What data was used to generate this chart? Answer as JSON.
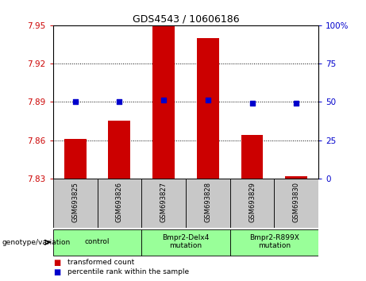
{
  "title": "GDS4543 / 10606186",
  "categories": [
    "GSM693825",
    "GSM693826",
    "GSM693827",
    "GSM693828",
    "GSM693829",
    "GSM693830"
  ],
  "bar_values": [
    7.861,
    7.875,
    7.949,
    7.94,
    7.864,
    7.832
  ],
  "percentile_values": [
    50,
    50,
    51,
    51,
    49,
    49
  ],
  "ylim_left": [
    7.83,
    7.95
  ],
  "ylim_right": [
    0,
    100
  ],
  "yticks_left": [
    7.83,
    7.86,
    7.89,
    7.92,
    7.95
  ],
  "ytick_labels_left": [
    "7.83",
    "7.86",
    "7.89",
    "7.92",
    "7.95"
  ],
  "yticks_right": [
    0,
    25,
    50,
    75,
    100
  ],
  "ytick_labels_right": [
    "0",
    "25",
    "50",
    "75",
    "100%"
  ],
  "bar_color": "#cc0000",
  "dot_color": "#0000cc",
  "bar_width": 0.5,
  "grid_color": "#000000",
  "left_tick_color": "#cc0000",
  "right_tick_color": "#0000cc",
  "groups": [
    {
      "label": "control",
      "start": 0,
      "end": 1,
      "color": "#99ff99"
    },
    {
      "label": "Bmpr2-Delx4\nmutation",
      "start": 2,
      "end": 3,
      "color": "#99ff99"
    },
    {
      "label": "Bmpr2-R899X\nmutation",
      "start": 4,
      "end": 5,
      "color": "#99ff99"
    }
  ],
  "genotype_label": "genotype/variation",
  "legend_items": [
    {
      "color": "#cc0000",
      "label": "transformed count"
    },
    {
      "color": "#0000cc",
      "label": "percentile rank within the sample"
    }
  ],
  "background_color": "#ffffff",
  "plot_bg_color": "#ffffff",
  "tick_area_bg": "#c8c8c8"
}
